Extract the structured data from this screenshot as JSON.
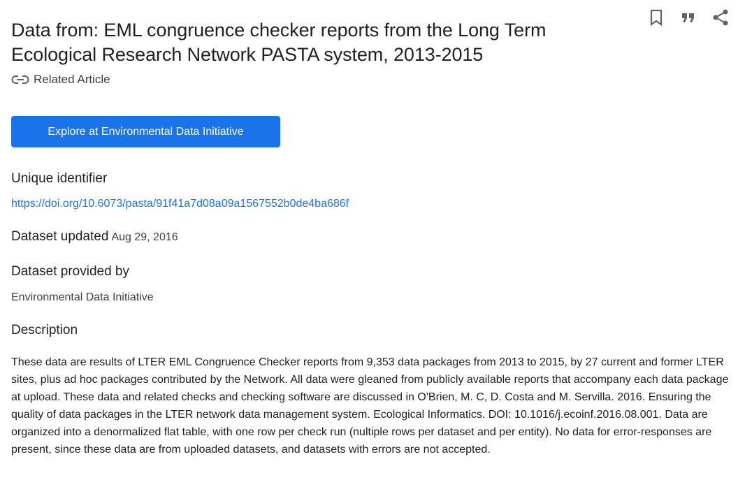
{
  "header": {
    "title": "Data from: EML congruence checker reports from the Long Term Ecological Research Network PASTA system, 2013-2015",
    "actions": {
      "bookmark_icon": "bookmark-icon",
      "cite_icon": "quote-icon",
      "share_icon": "share-icon"
    }
  },
  "related_article": {
    "icon": "link-icon",
    "label": "Related Article"
  },
  "explore_button": {
    "label": "Explore at Environmental Data Initiative",
    "color": "#1a73e8"
  },
  "unique_identifier": {
    "label": "Unique identifier",
    "value": "https://doi.org/10.6073/pasta/91f41a7d08a09a1567552b0de4ba686f"
  },
  "dataset_updated": {
    "label": "Dataset updated",
    "value": "Aug 29, 2016"
  },
  "provided_by": {
    "label": "Dataset provided by",
    "value": "Environmental Data Initiative"
  },
  "description": {
    "label": "Description",
    "text": "These data are results of LTER EML Congruence Checker reports from 9,353 data packages from 2013 to 2015, by 27 current and former LTER sites, plus ad hoc packages contributed by the Network. All data were gleaned from publicly available reports that accompany each data package at upload. These data and related checks and checking software are discussed in O'Brien, M. C, D. Costa and M. Servilla. 2016. Ensuring the quality of data packages in the LTER network data management system. Ecological Informatics. DOI: 10.1016/j.ecoinf.2016.08.001. Data are organized into a denormalized flat table, with one row per check run (nultiple rows per dataset and per entity). No data for error-responses are present, since these data are from uploaded datasets, and datasets with errors are not accepted."
  }
}
